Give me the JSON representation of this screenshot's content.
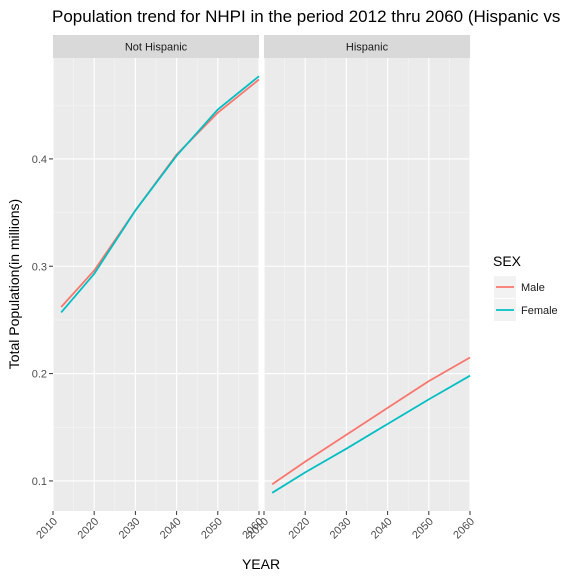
{
  "chart_data": {
    "type": "line",
    "title": "Population trend for NHPI in the period 2012 thru 2060 (Hispanic vs",
    "xlabel": "YEAR",
    "ylabel": "Total Population(in millions)",
    "xlim": [
      2010,
      2060
    ],
    "ylim": [
      0.072,
      0.494
    ],
    "x_ticks": [
      "2010",
      "2020",
      "2030",
      "2040",
      "2050",
      "2060"
    ],
    "y_ticks": [
      "0.1",
      "0.2",
      "0.3",
      "0.4"
    ],
    "grid": true,
    "legend": {
      "title": "SEX",
      "position": "right",
      "entries": [
        "Male",
        "Female"
      ]
    },
    "colors": {
      "Male": "#F8766D",
      "Female": "#00BFC4"
    },
    "x": [
      2012,
      2020,
      2030,
      2040,
      2050,
      2060
    ],
    "panels": [
      {
        "label": "Not Hispanic",
        "series": [
          {
            "name": "Male",
            "values": [
              0.262,
              0.296,
              0.352,
              0.404,
              0.443,
              0.474
            ]
          },
          {
            "name": "Female",
            "values": [
              0.257,
              0.293,
              0.352,
              0.403,
              0.446,
              0.477
            ]
          }
        ]
      },
      {
        "label": "Hispanic",
        "series": [
          {
            "name": "Male",
            "values": [
              0.097,
              0.118,
              0.143,
              0.168,
              0.193,
              0.215
            ]
          },
          {
            "name": "Female",
            "values": [
              0.089,
              0.108,
              0.13,
              0.153,
              0.176,
              0.198
            ]
          }
        ]
      }
    ]
  }
}
